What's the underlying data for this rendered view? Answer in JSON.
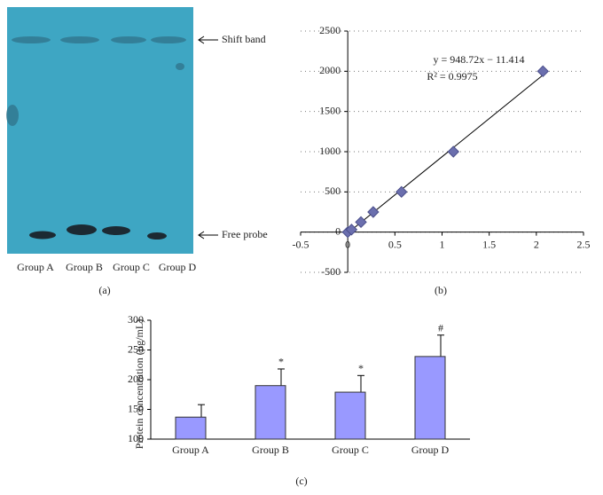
{
  "gel": {
    "labels": [
      "Group A",
      "Group B",
      "Group C",
      "Group D"
    ],
    "shift_label": "Shift band",
    "free_label": "Free probe",
    "caption": "(a)"
  },
  "chart_data": [
    {
      "type": "scatter",
      "caption": "(b)",
      "x": [
        0.0,
        0.04,
        0.14,
        0.27,
        0.57,
        1.12,
        2.07
      ],
      "y": [
        0,
        31.25,
        125,
        250,
        500,
        1000,
        2000
      ],
      "color": "#6b6fae",
      "fit": {
        "slope": 948.72,
        "intercept": -11.414
      },
      "annotations": [
        "y = 948.72x − 11.414",
        "R² = 0.9975"
      ],
      "xlim": [
        -0.5,
        2.5
      ],
      "xticks": [
        -0.5,
        0,
        0.5,
        1,
        1.5,
        2,
        2.5
      ],
      "ylim": [
        -500,
        2500
      ],
      "yticks": [
        -500,
        0,
        500,
        1000,
        1500,
        2000,
        2500
      ],
      "grid": true
    },
    {
      "type": "bar",
      "caption": "(c)",
      "ylabel": "Protein concentration (μg/mL)",
      "categories": [
        "Group A",
        "Group B",
        "Group C",
        "Group D"
      ],
      "values": [
        137,
        190,
        179,
        239
      ],
      "errors": [
        21,
        28,
        28,
        36
      ],
      "markers": [
        null,
        "*",
        "*",
        "#"
      ],
      "color": "#9999ff",
      "ylim": [
        100,
        300
      ],
      "yticks": [
        100,
        150,
        200,
        250,
        300
      ]
    }
  ]
}
